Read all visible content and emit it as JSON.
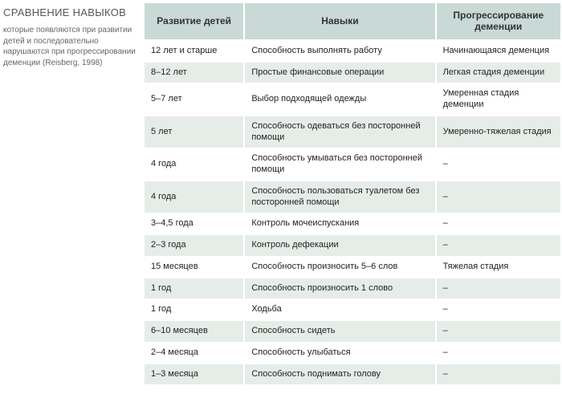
{
  "sidebar": {
    "title": "СРАВНЕНИЕ НАВЫКОВ",
    "description": "которые появляются при развитии детей и последовательно нарушаются при прогрессировании деменции (Reisberg, 1998)"
  },
  "table": {
    "type": "table",
    "background_color": "#ffffff",
    "header_bg": "#c9d9d6",
    "row_alt_bg": "#e6ede9",
    "row_bg": "#ffffff",
    "border_color": "#ffffff",
    "header_fontsize": 12,
    "cell_fontsize": 11,
    "text_color": "#222222",
    "header_text_color": "#333333",
    "columns": [
      {
        "label": "Развитие детей",
        "width_pct": 24,
        "align": "left"
      },
      {
        "label": "Навыки",
        "width_pct": 46,
        "align": "left"
      },
      {
        "label": "Прогрессирование деменции",
        "width_pct": 30,
        "align": "left"
      }
    ],
    "rows": [
      [
        "12 лет и старше",
        "Способность выполнять работу",
        "Начинающаяся деменция"
      ],
      [
        "8–12 лет",
        "Простые финансовые операции",
        "Легкая стадия деменции"
      ],
      [
        "5–7 лет",
        "Выбор подходящей одежды",
        "Умеренная стадия деменции"
      ],
      [
        "5 лет",
        "Способность одеваться без посторонней помощи",
        "Умеренно-тяжелая стадия"
      ],
      [
        "4 года",
        "Способность умываться без посторонней помощи",
        "–"
      ],
      [
        "4 года",
        "Способность пользоваться туалетом без посторонней помощи",
        "–"
      ],
      [
        "3–4,5 года",
        "Контроль мочеиспускания",
        "–"
      ],
      [
        "2–3 года",
        "Контроль дефекации",
        "–"
      ],
      [
        "15 месяцев",
        "Способность произносить 5–6 слов",
        "Тяжелая стадия"
      ],
      [
        "1 год",
        "Способность произносить 1 слово",
        "–"
      ],
      [
        "1 год",
        "Ходьба",
        "–"
      ],
      [
        "6–10 месяцев",
        "Способность сидеть",
        "–"
      ],
      [
        "2–4 месяца",
        "Способность улыбаться",
        "–"
      ],
      [
        "1–3 месяца",
        "Способность поднимать голову",
        "–"
      ]
    ]
  }
}
